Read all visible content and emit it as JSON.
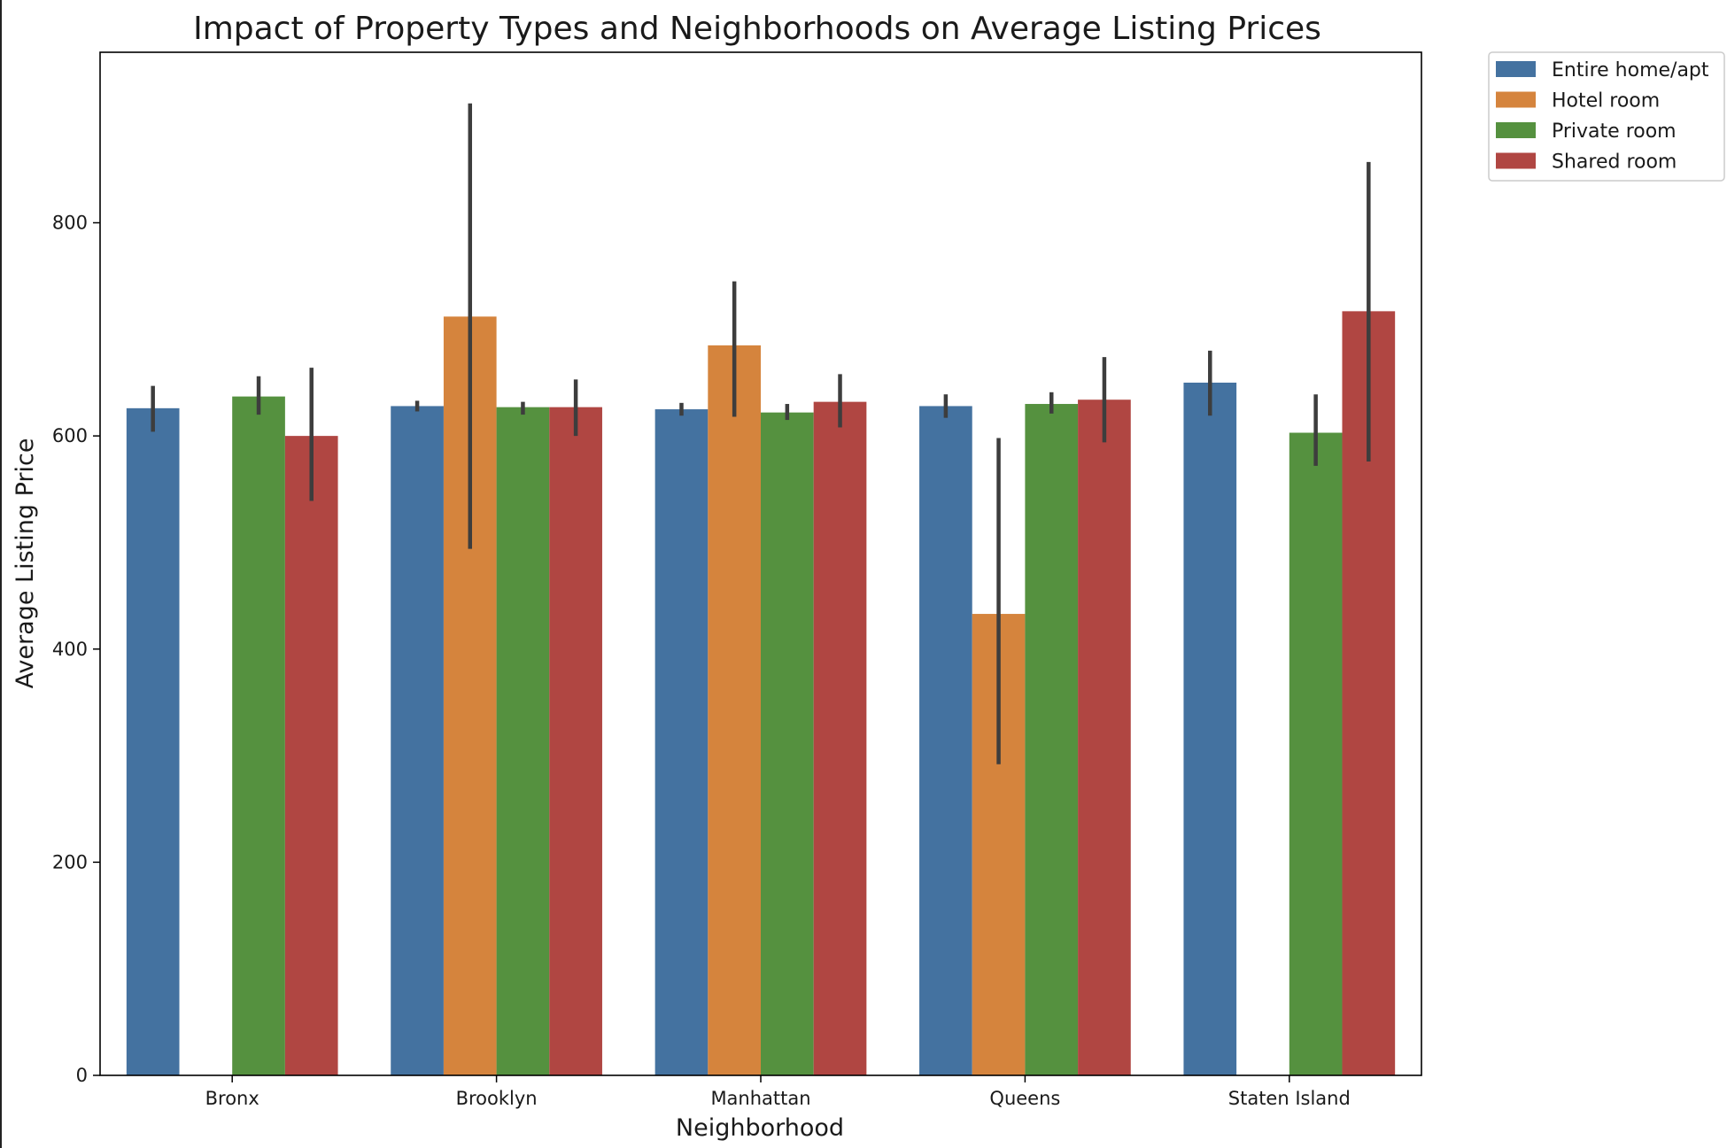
{
  "chart_data": {
    "type": "bar",
    "title": "Impact of Property Types and Neighborhoods on Average Listing Prices",
    "xlabel": "Neighborhood",
    "ylabel": "Average Listing Price",
    "categories": [
      "Bronx",
      "Brooklyn",
      "Manhattan",
      "Queens",
      "Staten Island"
    ],
    "ylim": [
      0,
      960
    ],
    "yticks": [
      0,
      200,
      400,
      600,
      800
    ],
    "grid": false,
    "legend_position": "outside-top-right",
    "series": [
      {
        "name": "Entire home/apt",
        "color": "#4472a0",
        "values": [
          626,
          628,
          625,
          628,
          650
        ],
        "err_low": [
          604,
          623,
          619,
          617,
          619
        ],
        "err_high": [
          647,
          633,
          631,
          639,
          680
        ]
      },
      {
        "name": "Hotel room",
        "color": "#d5843d",
        "values": [
          null,
          712,
          685,
          433,
          null
        ],
        "err_low": [
          null,
          494,
          618,
          292,
          null
        ],
        "err_high": [
          null,
          912,
          745,
          598,
          null
        ]
      },
      {
        "name": "Private room",
        "color": "#55913f",
        "values": [
          637,
          627,
          622,
          630,
          603
        ],
        "err_low": [
          620,
          620,
          615,
          621,
          572
        ],
        "err_high": [
          656,
          632,
          630,
          641,
          639
        ]
      },
      {
        "name": "Shared room",
        "color": "#b04642",
        "values": [
          600,
          627,
          632,
          634,
          717
        ],
        "err_low": [
          539,
          600,
          608,
          594,
          576
        ],
        "err_high": [
          664,
          653,
          658,
          674,
          857
        ]
      }
    ]
  }
}
